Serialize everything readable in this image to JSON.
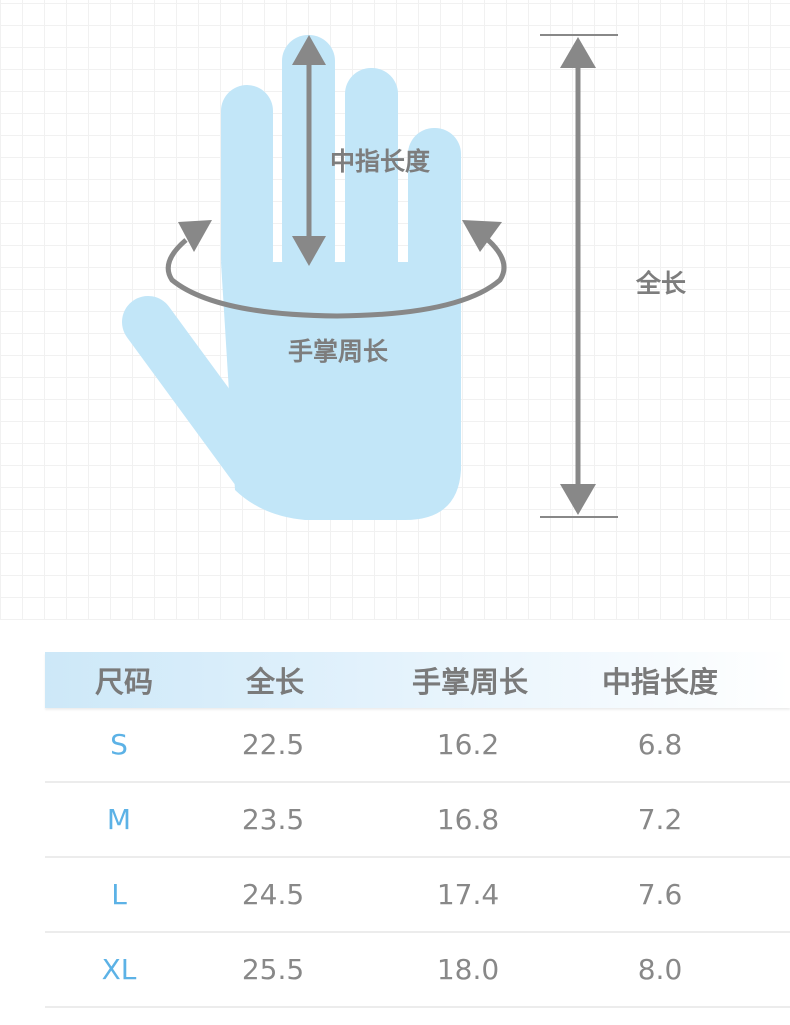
{
  "diagram": {
    "middle_finger_label": "中指长度",
    "palm_label": "手掌周长",
    "total_label": "全长",
    "hand_color": "#c2e6f8",
    "arrow_color": "#888888"
  },
  "table": {
    "headers": [
      "尺码",
      "全长",
      "手掌周长",
      "中指长度"
    ],
    "rows": [
      [
        "S",
        "22.5",
        "16.2",
        "6.8"
      ],
      [
        "M",
        "23.5",
        "16.8",
        "7.2"
      ],
      [
        "L",
        "24.5",
        "17.4",
        "7.6"
      ],
      [
        "XL",
        "25.5",
        "18.0",
        "8.0"
      ]
    ],
    "size_color": "#5cb2e6"
  }
}
